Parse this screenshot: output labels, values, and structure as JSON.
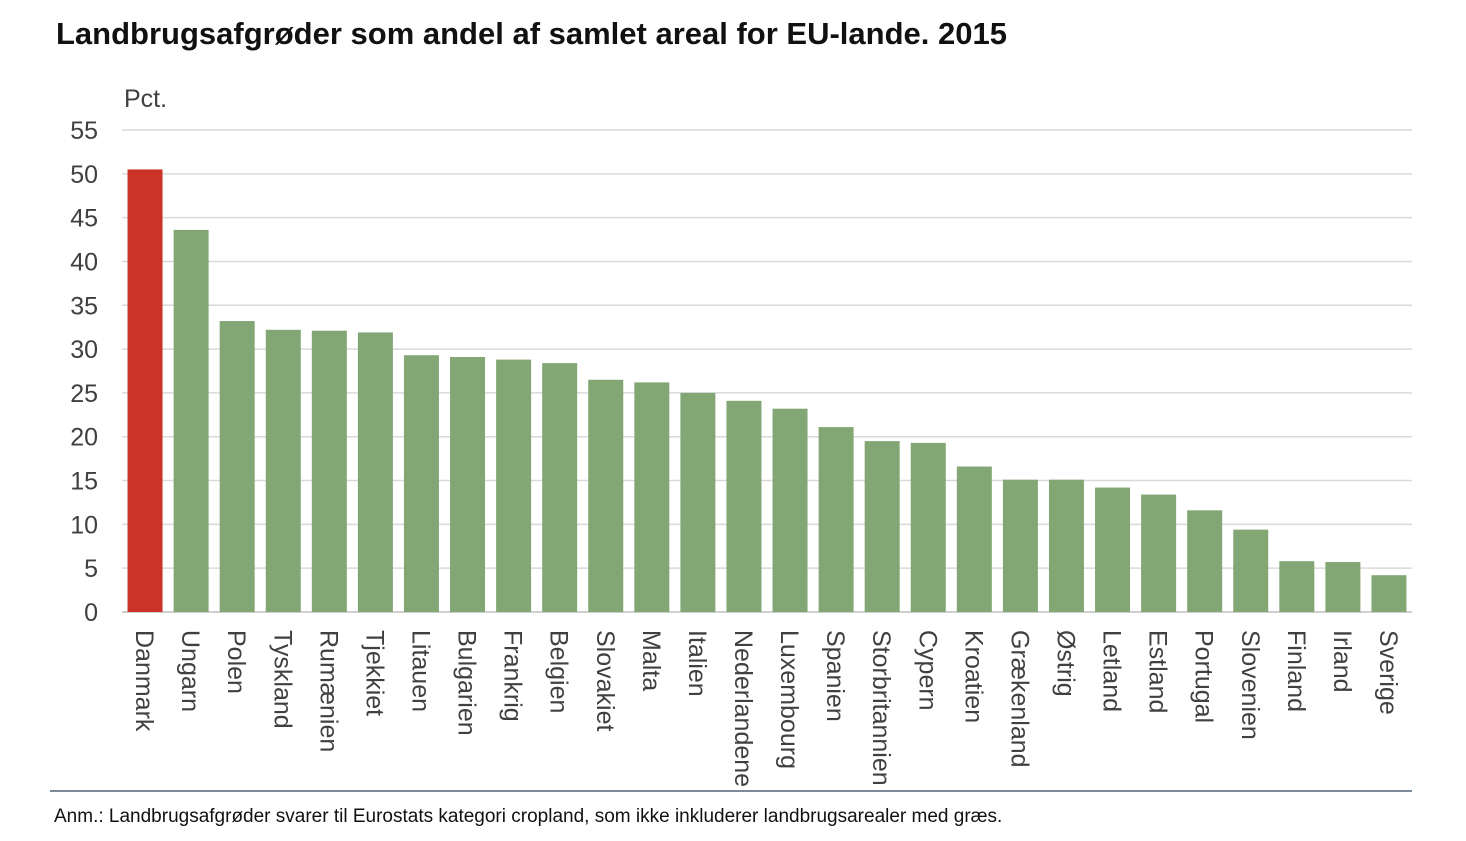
{
  "title": "Landbrugsafgrøder som andel af samlet areal for EU-lande. 2015",
  "note": "Anm.: Landbrugsafgrøder svarer til Eurostats kategori cropland, som ikke inkluderer landbrugsarealer med græs.",
  "chart_data": {
    "type": "bar",
    "title": "Landbrugsafgrøder som andel af samlet areal for EU-lande. 2015",
    "ylabel": "Pct.",
    "xlabel": "",
    "ylim": [
      0,
      55
    ],
    "yticks": [
      0,
      5,
      10,
      15,
      20,
      25,
      30,
      35,
      40,
      45,
      50,
      55
    ],
    "grid": true,
    "legend": "none",
    "categories": [
      "Danmark",
      "Ungarn",
      "Polen",
      "Tyskland",
      "Rumænien",
      "Tjekkiet",
      "Litauen",
      "Bulgarien",
      "Frankrig",
      "Belgien",
      "Slovakiet",
      "Malta",
      "Italien",
      "Nederlandene",
      "Luxembourg",
      "Spanien",
      "Storbritannien",
      "Cypern",
      "Kroatien",
      "Grækenland",
      "Østrig",
      "Letland",
      "Estland",
      "Portugal",
      "Slovenien",
      "Finland",
      "Irland",
      "Sverige"
    ],
    "values": [
      50.5,
      43.6,
      33.2,
      32.2,
      32.1,
      31.9,
      29.3,
      29.1,
      28.8,
      28.4,
      26.5,
      26.2,
      25.0,
      24.1,
      23.2,
      21.1,
      19.5,
      19.3,
      16.6,
      15.1,
      15.1,
      14.2,
      13.4,
      11.6,
      9.4,
      5.8,
      5.7,
      4.2
    ],
    "colors": {
      "highlight": "#cc3328",
      "default": "#82a775",
      "grid": "#d9d9d9",
      "axis_text": "#404040"
    },
    "highlight_category": "Danmark"
  }
}
